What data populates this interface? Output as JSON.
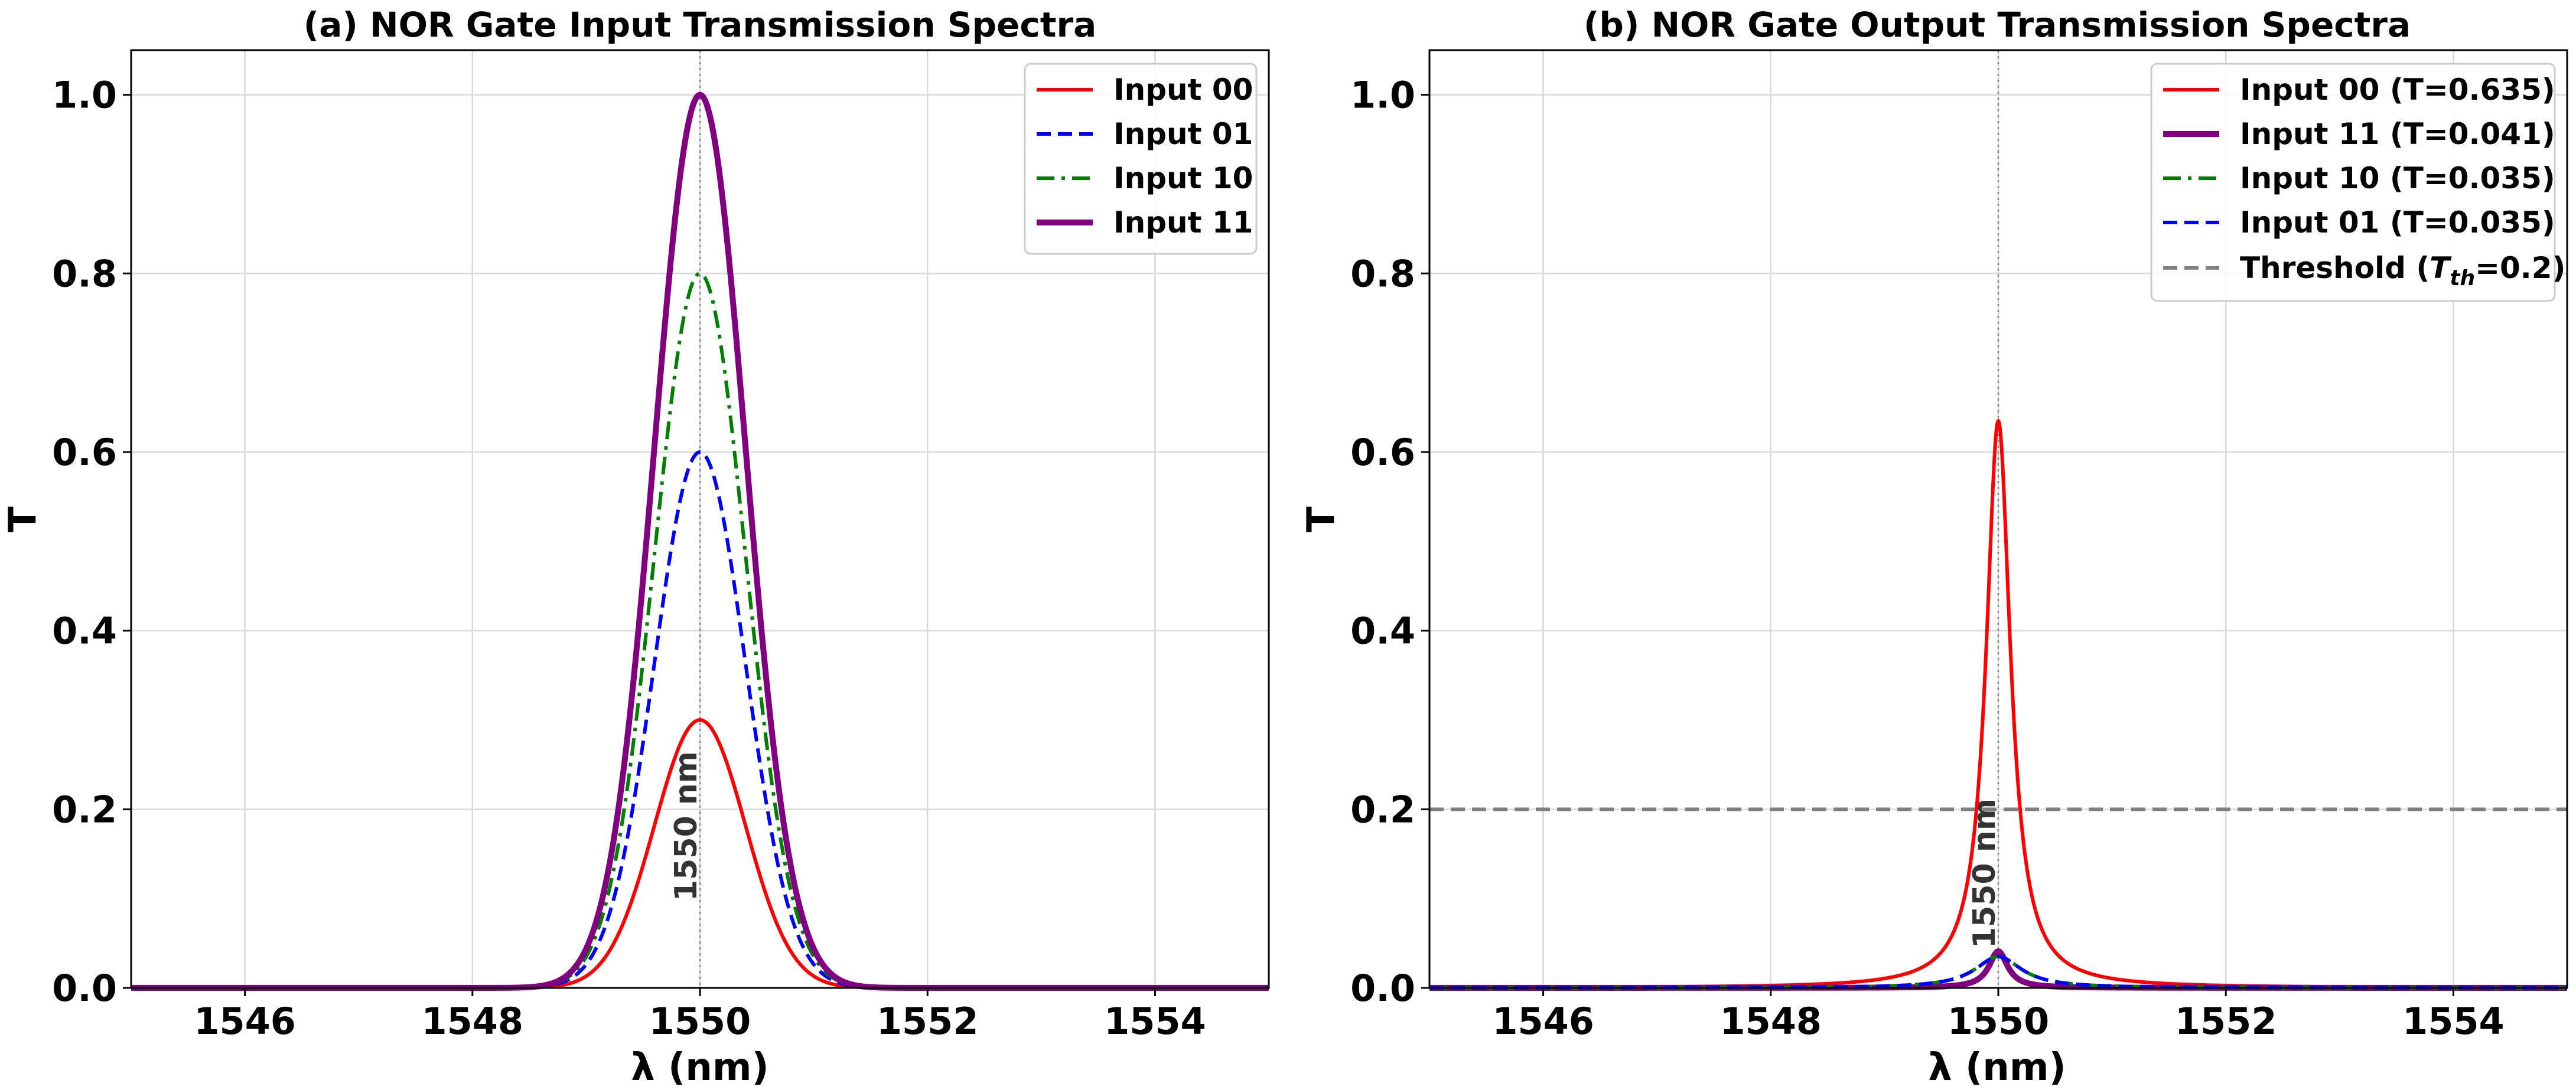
{
  "chart_data": [
    {
      "type": "line",
      "title": "(a) NOR Gate Input Transmission Spectra",
      "xlabel": "λ (nm)",
      "ylabel": "T",
      "xlim": [
        1545,
        1555
      ],
      "ylim": [
        0,
        1.05
      ],
      "xticks": [
        1546,
        1548,
        1550,
        1552,
        1554
      ],
      "yticks": [
        0.0,
        0.2,
        0.4,
        0.6,
        0.8,
        1.0
      ],
      "xtick_labels": [
        "1546",
        "1548",
        "1550",
        "1552",
        "1554"
      ],
      "ytick_labels": [
        "0.0",
        "0.2",
        "0.4",
        "0.6",
        "0.8",
        "1.0"
      ],
      "grid": true,
      "legend_position": "top-right",
      "profile": "gaussian",
      "center": 1550,
      "width": 0.4,
      "vline": {
        "x": 1550,
        "label": "1550 nm"
      },
      "series": [
        {
          "name": "Input 00",
          "peak": 0.3,
          "color": "#ff0000",
          "dash": "solid",
          "width": 6
        },
        {
          "name": "Input 01",
          "peak": 0.6,
          "color": "#0000ff",
          "dash": "dashed",
          "width": 6
        },
        {
          "name": "Input 10",
          "peak": 0.8,
          "color": "#008000",
          "dash": "dashdot",
          "width": 6
        },
        {
          "name": "Input 11",
          "peak": 1.0,
          "color": "#800080",
          "dash": "solid",
          "width": 10
        }
      ]
    },
    {
      "type": "line",
      "title": "(b) NOR Gate Output Transmission Spectra",
      "xlabel": "λ (nm)",
      "ylabel": "T",
      "xlim": [
        1545,
        1555
      ],
      "ylim": [
        0,
        1.05
      ],
      "xticks": [
        1546,
        1548,
        1550,
        1552,
        1554
      ],
      "yticks": [
        0.0,
        0.2,
        0.4,
        0.6,
        0.8,
        1.0
      ],
      "xtick_labels": [
        "1546",
        "1548",
        "1550",
        "1552",
        "1554"
      ],
      "ytick_labels": [
        "0.0",
        "0.2",
        "0.4",
        "0.6",
        "0.8",
        "1.0"
      ],
      "grid": true,
      "legend_position": "top-right",
      "profile": "lorentzian",
      "center": 1550,
      "vline": {
        "x": 1550,
        "label": "1550 nm"
      },
      "threshold": {
        "value": 0.2,
        "label": "Threshold (T_th=0.2)",
        "color": "#808080"
      },
      "series": [
        {
          "name": "Input 00 (T=0.635)",
          "peak": 0.635,
          "hwhm": 0.13,
          "color": "#ff0000",
          "dash": "solid",
          "width": 6
        },
        {
          "name": "Input 11 (T=0.041)",
          "peak": 0.041,
          "hwhm": 0.1,
          "color": "#800080",
          "dash": "solid",
          "width": 10
        },
        {
          "name": "Input 10 (T=0.035)",
          "peak": 0.035,
          "hwhm": 0.25,
          "color": "#008000",
          "dash": "dashdot",
          "width": 6
        },
        {
          "name": "Input 01 (T=0.035)",
          "peak": 0.035,
          "hwhm": 0.25,
          "color": "#0000ff",
          "dash": "dashed",
          "width": 6
        }
      ]
    }
  ]
}
